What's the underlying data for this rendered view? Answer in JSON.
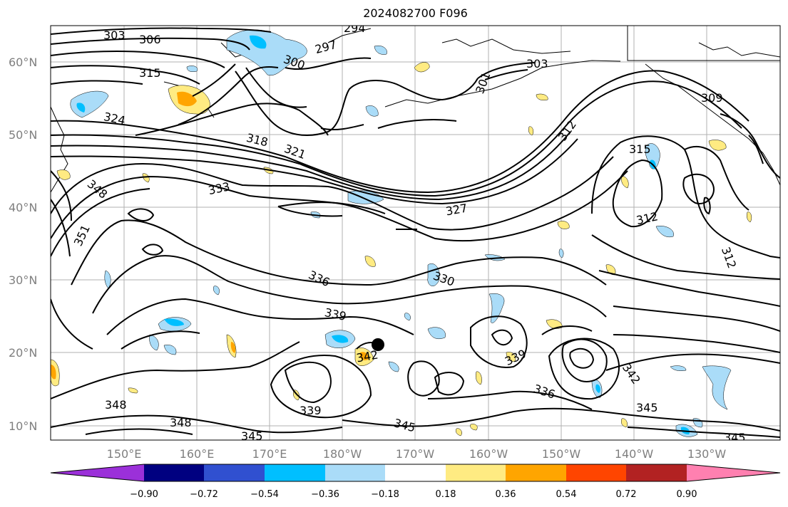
{
  "title": "2024082700 F096",
  "lat_labels": [
    "60°N",
    "50°N",
    "40°N",
    "30°N",
    "20°N",
    "10°N"
  ],
  "lon_labels": [
    "150°E",
    "160°E",
    "170°E",
    "180°W",
    "170°W",
    "160°W",
    "150°W",
    "140°W",
    "130°W"
  ],
  "colorbar": {
    "colors": [
      "#9b30d9",
      "#000080",
      "#3050d0",
      "#00bfff",
      "#aadcf8",
      "#ffffff",
      "#ffeb82",
      "#ffa500",
      "#ff4500",
      "#b22222",
      "#ff80b0"
    ],
    "tick_labels": [
      "−0.90",
      "−0.72",
      "−0.54",
      "−0.36",
      "−0.18",
      "0.18",
      "0.36",
      "0.54",
      "0.72",
      "0.90"
    ]
  },
  "contour_labels": [
    "303",
    "306",
    "294",
    "297",
    "300",
    "315",
    "324",
    "318",
    "321",
    "301",
    "303",
    "309",
    "312",
    "315",
    "348",
    "333",
    "327",
    "312",
    "351",
    "312",
    "336",
    "330",
    "339",
    "342",
    "339",
    "336",
    "342",
    "345",
    "348",
    "348",
    "345",
    "339",
    "345",
    "345"
  ],
  "marker": "storm-center"
}
